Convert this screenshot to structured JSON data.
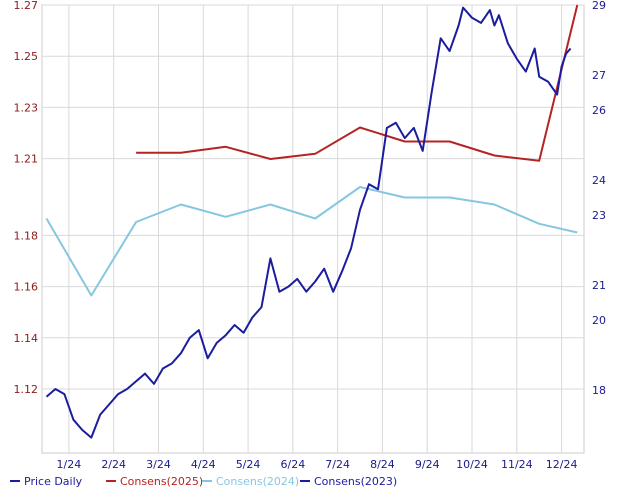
{
  "chart_data": {
    "type": "line",
    "grid": true,
    "legend_position": "bottom",
    "y_left": {
      "range": [
        1.095,
        1.27
      ],
      "ticks": [
        1.27,
        1.25,
        1.23,
        1.21,
        1.18,
        1.16,
        1.14,
        1.12
      ],
      "tick_labels": [
        "1.27",
        "1.25",
        "1.23",
        "1.21",
        "1.18",
        "1.16",
        "1.14",
        "1.12"
      ],
      "color": "#8b1a1a"
    },
    "y_right": {
      "range": [
        16.2,
        29
      ],
      "ticks": [
        29,
        27,
        26,
        24,
        23,
        21,
        20,
        18
      ],
      "tick_labels": [
        "29",
        "27",
        "26",
        "24",
        "23",
        "21",
        "20",
        "18"
      ],
      "color": "#1a1a8b"
    },
    "x_tick_labels": [
      "1/24",
      "2/24",
      "3/24",
      "4/24",
      "5/24",
      "6/24",
      "7/24",
      "8/24",
      "9/24",
      "10/24",
      "11/24",
      "12/24"
    ],
    "series": [
      {
        "name": "Price Daily",
        "axis": "left",
        "color": "#1c1c9e",
        "x": [
          0.0,
          0.2,
          0.4,
          0.6,
          0.8,
          1.0,
          1.2,
          1.4,
          1.6,
          1.8,
          2.0,
          2.2,
          2.4,
          2.6,
          2.8,
          3.0,
          3.2,
          3.4,
          3.6,
          3.8,
          4.0,
          4.2,
          4.4,
          4.6,
          4.8,
          5.0,
          5.2,
          5.4,
          5.6,
          5.8,
          6.0,
          6.2,
          6.4,
          6.6,
          6.8,
          7.0,
          7.2,
          7.4,
          7.6,
          7.8,
          8.0,
          8.2,
          8.4,
          8.6,
          8.8,
          9.0,
          9.2,
          9.3,
          9.5,
          9.7,
          9.9,
          10.0,
          10.1,
          10.3,
          10.5,
          10.7,
          10.9,
          11.0,
          11.2,
          11.4,
          11.5,
          11.6,
          11.7
        ],
        "y": [
          1.117,
          1.12,
          1.118,
          1.108,
          1.104,
          1.101,
          1.11,
          1.114,
          1.118,
          1.12,
          1.123,
          1.126,
          1.122,
          1.128,
          1.13,
          1.134,
          1.14,
          1.143,
          1.132,
          1.138,
          1.141,
          1.145,
          1.142,
          1.148,
          1.152,
          1.171,
          1.158,
          1.16,
          1.163,
          1.158,
          1.162,
          1.167,
          1.158,
          1.166,
          1.175,
          1.19,
          1.2,
          1.198,
          1.222,
          1.224,
          1.218,
          1.222,
          1.213,
          1.236,
          1.257,
          1.252,
          1.262,
          1.269,
          1.265,
          1.263,
          1.268,
          1.262,
          1.266,
          1.255,
          1.249,
          1.244,
          1.253,
          1.242,
          1.24,
          1.235,
          1.246,
          1.251,
          1.253
        ]
      },
      {
        "name": "Consens(2025)",
        "axis": "right",
        "color": "#b52424",
        "x": [
          2,
          3,
          4,
          5,
          6,
          7,
          8,
          9,
          10,
          11,
          11.85
        ],
        "y": [
          24.78,
          24.78,
          24.95,
          24.6,
          24.75,
          25.5,
          25.1,
          25.1,
          24.7,
          24.55,
          29.0
        ]
      },
      {
        "name": "Consens(2024)",
        "axis": "right",
        "color": "#86c7e0",
        "x": [
          0,
          1,
          2,
          3,
          4,
          5,
          6,
          7,
          8,
          9,
          10,
          11,
          11.85
        ],
        "y": [
          22.9,
          20.7,
          22.8,
          23.3,
          22.95,
          23.3,
          22.9,
          23.8,
          23.5,
          23.5,
          23.3,
          22.75,
          22.5
        ]
      }
    ],
    "legend": [
      {
        "label": "Price Daily",
        "color": "#1c1c9e"
      },
      {
        "label": "Consens(2025)",
        "color": "#b52424"
      },
      {
        "label": "Consens(2024)",
        "color": "#86c7e0"
      },
      {
        "label": "Consens(2023)",
        "color": "#1c1c9e"
      }
    ]
  }
}
